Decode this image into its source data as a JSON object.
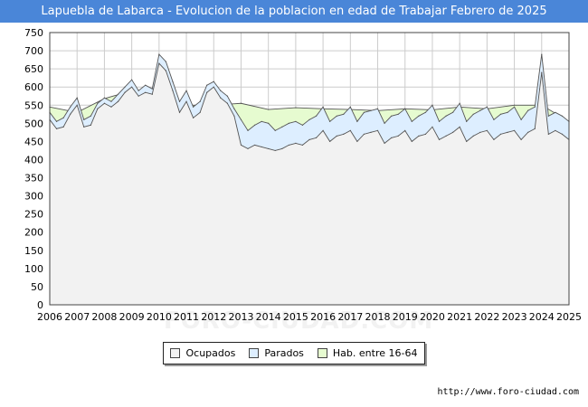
{
  "title": "Lapuebla de Labarca - Evolucion de la poblacion en edad de Trabajar Febrero de 2025",
  "watermark": "FORO-CIUDAD.COM",
  "source_url": "http://www.foro-ciudad.com",
  "colors": {
    "title_bg": "#4a86d8",
    "ocupados_fill": "#f2f2f2",
    "parados_fill": "#ddeeff",
    "hab_fill": "#e6fbd0",
    "line": "#555555"
  },
  "chart_data": {
    "type": "area",
    "title": "Lapuebla de Labarca - Evolucion de la poblacion en edad de Trabajar Febrero de 2025",
    "xlim": [
      2006,
      2025
    ],
    "ylim": [
      0,
      750
    ],
    "x_ticks": [
      "2006",
      "2007",
      "2008",
      "2009",
      "2010",
      "2011",
      "2012",
      "2013",
      "2014",
      "2015",
      "2016",
      "2017",
      "2018",
      "2019",
      "2020",
      "2021",
      "2022",
      "2023",
      "2024",
      "2025"
    ],
    "y_ticks": [
      0,
      50,
      100,
      150,
      200,
      250,
      300,
      350,
      400,
      450,
      500,
      550,
      600,
      650,
      700,
      750
    ],
    "grid": true,
    "legend_position": "bottom",
    "legend": [
      "Ocupados",
      "Parados",
      "Hab. entre 16-64"
    ],
    "series": [
      {
        "name": "Hab. entre 16-64",
        "color": "#e6fbd0",
        "x": [
          2006,
          2007,
          2008,
          2009,
          2010,
          2011,
          2012,
          2013,
          2014,
          2015,
          2016,
          2017,
          2018,
          2019,
          2020,
          2021,
          2022,
          2023,
          2024,
          2025
        ],
        "values": [
          545,
          530,
          568,
          590,
          585,
          550,
          550,
          555,
          538,
          543,
          540,
          538,
          535,
          540,
          537,
          545,
          540,
          550,
          550,
          505
        ]
      },
      {
        "name": "Parados",
        "color": "#ddeeff",
        "x": [
          2006.0,
          2006.25,
          2006.5,
          2006.75,
          2007.0,
          2007.25,
          2007.5,
          2007.75,
          2008.0,
          2008.25,
          2008.5,
          2008.75,
          2009.0,
          2009.25,
          2009.5,
          2009.75,
          2010.0,
          2010.25,
          2010.5,
          2010.75,
          2011.0,
          2011.25,
          2011.5,
          2011.75,
          2012.0,
          2012.25,
          2012.5,
          2012.75,
          2013.0,
          2013.25,
          2013.5,
          2013.75,
          2014.0,
          2014.25,
          2014.5,
          2014.75,
          2015.0,
          2015.25,
          2015.5,
          2015.75,
          2016.0,
          2016.25,
          2016.5,
          2016.75,
          2017.0,
          2017.25,
          2017.5,
          2017.75,
          2018.0,
          2018.25,
          2018.5,
          2018.75,
          2019.0,
          2019.25,
          2019.5,
          2019.75,
          2020.0,
          2020.25,
          2020.5,
          2020.75,
          2021.0,
          2021.25,
          2021.5,
          2021.75,
          2022.0,
          2022.25,
          2022.5,
          2022.75,
          2023.0,
          2023.25,
          2023.5,
          2023.75,
          2024.0,
          2024.25,
          2024.5,
          2024.75,
          2025.0
        ],
        "values": [
          530,
          505,
          515,
          545,
          570,
          510,
          520,
          555,
          570,
          560,
          580,
          600,
          620,
          590,
          605,
          595,
          690,
          670,
          615,
          560,
          590,
          545,
          560,
          605,
          615,
          590,
          575,
          540,
          510,
          480,
          495,
          505,
          500,
          480,
          490,
          500,
          505,
          495,
          510,
          520,
          545,
          505,
          520,
          525,
          545,
          505,
          530,
          535,
          540,
          500,
          520,
          525,
          540,
          505,
          520,
          530,
          550,
          505,
          520,
          530,
          555,
          505,
          525,
          535,
          545,
          510,
          525,
          530,
          545,
          510,
          535,
          545,
          690,
          520,
          530,
          520,
          505
        ]
      },
      {
        "name": "Ocupados",
        "color": "#f2f2f2",
        "x": [
          2006.0,
          2006.25,
          2006.5,
          2006.75,
          2007.0,
          2007.25,
          2007.5,
          2007.75,
          2008.0,
          2008.25,
          2008.5,
          2008.75,
          2009.0,
          2009.25,
          2009.5,
          2009.75,
          2010.0,
          2010.25,
          2010.5,
          2010.75,
          2011.0,
          2011.25,
          2011.5,
          2011.75,
          2012.0,
          2012.25,
          2012.5,
          2012.75,
          2013.0,
          2013.25,
          2013.5,
          2013.75,
          2014.0,
          2014.25,
          2014.5,
          2014.75,
          2015.0,
          2015.25,
          2015.5,
          2015.75,
          2016.0,
          2016.25,
          2016.5,
          2016.75,
          2017.0,
          2017.25,
          2017.5,
          2017.75,
          2018.0,
          2018.25,
          2018.5,
          2018.75,
          2019.0,
          2019.25,
          2019.5,
          2019.75,
          2020.0,
          2020.25,
          2020.5,
          2020.75,
          2021.0,
          2021.25,
          2021.5,
          2021.75,
          2022.0,
          2022.25,
          2022.5,
          2022.75,
          2023.0,
          2023.25,
          2023.5,
          2023.75,
          2024.0,
          2024.25,
          2024.5,
          2024.75,
          2025.0
        ],
        "values": [
          510,
          485,
          490,
          525,
          550,
          490,
          495,
          540,
          555,
          545,
          560,
          585,
          600,
          575,
          585,
          580,
          665,
          645,
          590,
          530,
          560,
          515,
          530,
          585,
          600,
          570,
          555,
          520,
          440,
          430,
          440,
          435,
          430,
          425,
          430,
          440,
          445,
          440,
          455,
          460,
          480,
          450,
          465,
          470,
          480,
          450,
          470,
          475,
          480,
          445,
          460,
          465,
          480,
          450,
          465,
          470,
          490,
          455,
          465,
          475,
          490,
          450,
          465,
          475,
          480,
          455,
          470,
          475,
          480,
          455,
          475,
          485,
          640,
          470,
          480,
          470,
          455
        ]
      }
    ]
  }
}
